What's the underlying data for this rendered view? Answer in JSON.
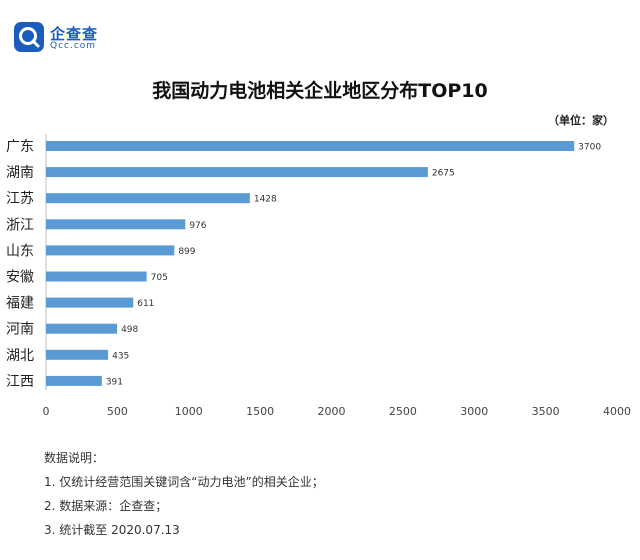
{
  "brand": {
    "name": "企查查",
    "sub": "Qcc.com",
    "accent": "#1a5dbf"
  },
  "unit_label": "（单位：家）",
  "notes": {
    "heading": "数据说明：",
    "items": [
      "1. 仅统计经营范围关键词含“动力电池”的相关企业；",
      "2. 数据来源：企查查；",
      "3. 统计截至 2020.07.13"
    ]
  },
  "chart_data": {
    "type": "bar",
    "orientation": "horizontal",
    "title": "我国动力电池相关企业地区分布TOP10",
    "categories": [
      "广东",
      "湖南",
      "江苏",
      "浙江",
      "山东",
      "安徽",
      "福建",
      "河南",
      "湖北",
      "江西"
    ],
    "values": [
      3700,
      2675,
      1428,
      976,
      899,
      705,
      611,
      498,
      435,
      391
    ],
    "xlim": [
      0,
      4000
    ],
    "xticks": [
      0,
      500,
      1000,
      1500,
      2000,
      2500,
      3000,
      3500,
      4000
    ],
    "grid": false,
    "bar_color": "#5b9bd5",
    "data_labels": true
  }
}
